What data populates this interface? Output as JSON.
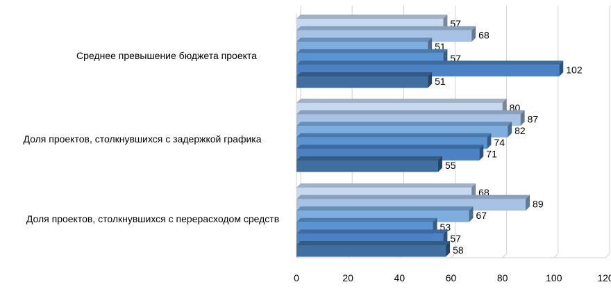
{
  "chart_data": {
    "type": "bar",
    "orientation": "horizontal",
    "categories": [
      "Среднее превышение бюджета проекта",
      "Доля проектов, столкнувшихся с задержкой графика",
      "Доля проектов, столкнувшихся с перерасходом средств"
    ],
    "series": [
      {
        "values": [
          57,
          80,
          68
        ]
      },
      {
        "values": [
          68,
          87,
          89
        ]
      },
      {
        "values": [
          51,
          82,
          67
        ]
      },
      {
        "values": [
          57,
          74,
          53
        ]
      },
      {
        "values": [
          102,
          71,
          57
        ]
      },
      {
        "values": [
          51,
          55,
          58
        ]
      }
    ],
    "series_colors": [
      "#c6d9f1",
      "#a7c2e4",
      "#7eaee0",
      "#5a95d2",
      "#4a82c3",
      "#3f6fa0"
    ],
    "xlim": [
      0,
      120
    ],
    "xticks": [
      "0",
      "20",
      "40",
      "60",
      "80",
      "100",
      "120"
    ],
    "grid": true,
    "legend": "none",
    "style": "3d"
  }
}
